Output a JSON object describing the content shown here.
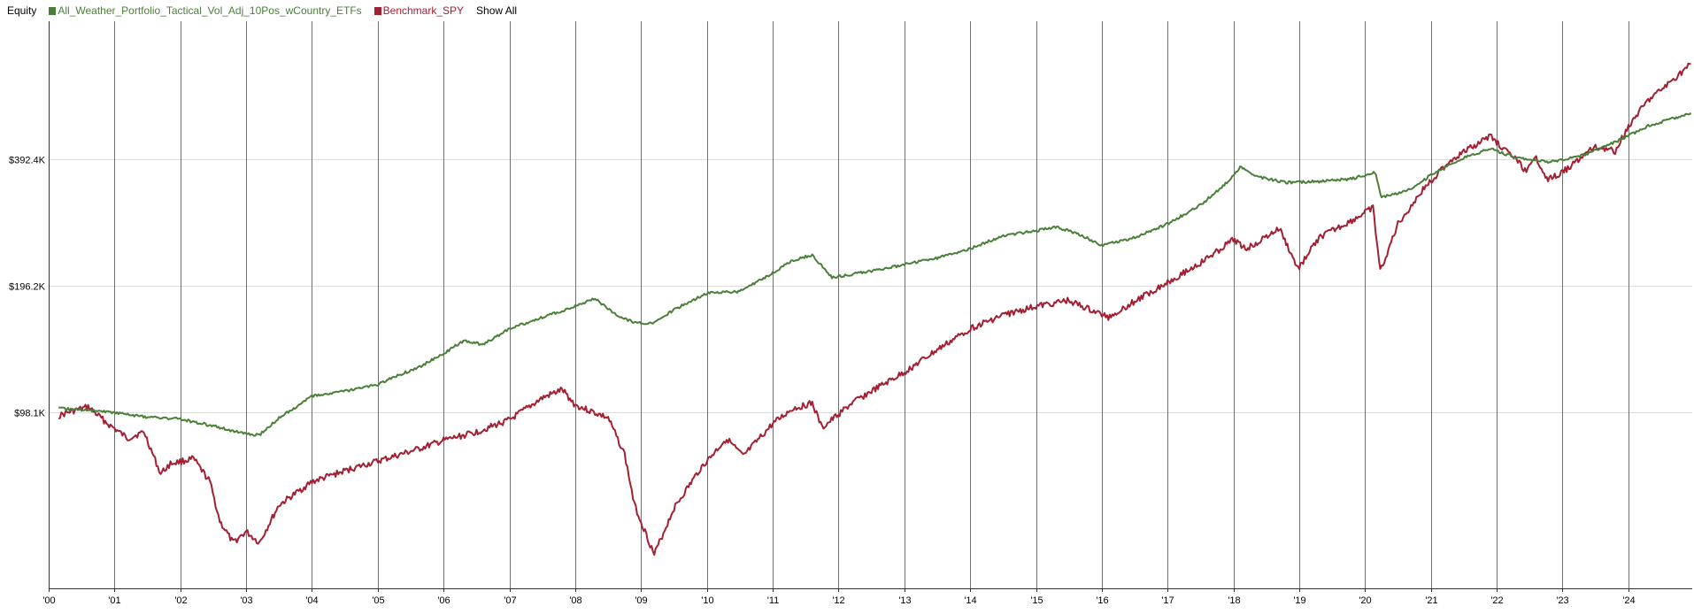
{
  "legend": {
    "title": "Equity",
    "show_all": "Show All"
  },
  "colors": {
    "strategy": "#4a7f39",
    "benchmark": "#a31f31",
    "year_grid": "#6f6f6f",
    "value_grid": "#dcdcdc",
    "axis": "#333333"
  },
  "chart_data": {
    "type": "line",
    "title": "Equity",
    "xlabel": "",
    "ylabel": "",
    "y_scale": "log",
    "y_ticks": [
      {
        "value": 98100,
        "label": "$98.1K"
      },
      {
        "value": 196200,
        "label": "$196.2K"
      },
      {
        "value": 392400,
        "label": "$392.4K"
      }
    ],
    "x_ticks": [
      "'00",
      "'01",
      "'02",
      "'03",
      "'04",
      "'05",
      "'06",
      "'07",
      "'08",
      "'09",
      "'10",
      "'11",
      "'12",
      "'13",
      "'14",
      "'15",
      "'16",
      "'17",
      "'18",
      "'19",
      "'20",
      "'21",
      "'22",
      "'23",
      "'24"
    ],
    "xlim": [
      2000.0,
      2024.97
    ],
    "ylim": [
      37400,
      834000
    ],
    "grid": {
      "x": true,
      "y": true
    },
    "legend_position": "top-left",
    "series": [
      {
        "name": "All_Weather_Portfolio_Tactical_Vol_Adj_10Pos_wCountry_ETFs",
        "points": [
          [
            2000.15,
            100000
          ],
          [
            2000.5,
            99500
          ],
          [
            2001.0,
            98000
          ],
          [
            2001.5,
            95500
          ],
          [
            2002.0,
            94500
          ],
          [
            2002.5,
            91000
          ],
          [
            2003.0,
            87000
          ],
          [
            2003.2,
            86500
          ],
          [
            2003.5,
            95000
          ],
          [
            2004.0,
            107000
          ],
          [
            2004.5,
            110000
          ],
          [
            2005.0,
            114000
          ],
          [
            2005.3,
            120000
          ],
          [
            2005.6,
            125000
          ],
          [
            2006.0,
            135000
          ],
          [
            2006.3,
            145000
          ],
          [
            2006.6,
            142000
          ],
          [
            2007.0,
            155000
          ],
          [
            2007.5,
            165000
          ],
          [
            2008.0,
            175000
          ],
          [
            2008.3,
            183000
          ],
          [
            2008.6,
            168000
          ],
          [
            2008.9,
            160000
          ],
          [
            2009.2,
            160000
          ],
          [
            2009.5,
            172000
          ],
          [
            2010.0,
            188000
          ],
          [
            2010.5,
            190000
          ],
          [
            2011.0,
            210000
          ],
          [
            2011.3,
            225000
          ],
          [
            2011.6,
            232000
          ],
          [
            2011.9,
            205000
          ],
          [
            2012.3,
            210000
          ],
          [
            2012.7,
            215000
          ],
          [
            2013.0,
            220000
          ],
          [
            2013.5,
            228000
          ],
          [
            2014.0,
            240000
          ],
          [
            2014.5,
            258000
          ],
          [
            2015.0,
            265000
          ],
          [
            2015.3,
            270000
          ],
          [
            2015.6,
            262000
          ],
          [
            2016.0,
            245000
          ],
          [
            2016.5,
            255000
          ],
          [
            2017.0,
            275000
          ],
          [
            2017.5,
            305000
          ],
          [
            2017.9,
            345000
          ],
          [
            2018.1,
            375000
          ],
          [
            2018.4,
            355000
          ],
          [
            2018.8,
            345000
          ],
          [
            2019.3,
            347000
          ],
          [
            2019.8,
            352000
          ],
          [
            2020.15,
            365000
          ],
          [
            2020.25,
            318000
          ],
          [
            2020.5,
            325000
          ],
          [
            2020.8,
            340000
          ],
          [
            2021.0,
            360000
          ],
          [
            2021.5,
            395000
          ],
          [
            2021.9,
            415000
          ],
          [
            2022.3,
            395000
          ],
          [
            2022.8,
            385000
          ],
          [
            2023.3,
            400000
          ],
          [
            2023.8,
            430000
          ],
          [
            2024.3,
            470000
          ],
          [
            2024.95,
            505000
          ]
        ]
      },
      {
        "name": "Benchmark_SPY",
        "points": [
          [
            2000.15,
            96000
          ],
          [
            2000.3,
            98000
          ],
          [
            2000.6,
            101000
          ],
          [
            2000.9,
            92000
          ],
          [
            2001.2,
            85000
          ],
          [
            2001.45,
            88000
          ],
          [
            2001.7,
            70000
          ],
          [
            2001.85,
            74000
          ],
          [
            2002.2,
            76000
          ],
          [
            2002.45,
            67000
          ],
          [
            2002.6,
            54000
          ],
          [
            2002.8,
            48000
          ],
          [
            2003.0,
            51000
          ],
          [
            2003.2,
            48000
          ],
          [
            2003.5,
            59000
          ],
          [
            2004.0,
            67000
          ],
          [
            2004.6,
            72000
          ],
          [
            2005.0,
            75000
          ],
          [
            2005.6,
            80000
          ],
          [
            2006.0,
            84000
          ],
          [
            2006.5,
            88000
          ],
          [
            2007.0,
            94000
          ],
          [
            2007.5,
            106000
          ],
          [
            2007.8,
            111000
          ],
          [
            2008.0,
            102000
          ],
          [
            2008.5,
            95000
          ],
          [
            2008.75,
            78000
          ],
          [
            2008.9,
            59000
          ],
          [
            2009.2,
            45000
          ],
          [
            2009.5,
            58000
          ],
          [
            2009.9,
            72000
          ],
          [
            2010.3,
            85000
          ],
          [
            2010.55,
            77000
          ],
          [
            2011.0,
            92000
          ],
          [
            2011.3,
            100000
          ],
          [
            2011.6,
            103000
          ],
          [
            2011.75,
            90000
          ],
          [
            2012.2,
            103000
          ],
          [
            2012.5,
            110000
          ],
          [
            2013.0,
            122000
          ],
          [
            2013.5,
            138000
          ],
          [
            2014.0,
            155000
          ],
          [
            2014.5,
            167000
          ],
          [
            2015.0,
            175000
          ],
          [
            2015.5,
            181000
          ],
          [
            2015.7,
            175000
          ],
          [
            2016.1,
            165000
          ],
          [
            2016.5,
            180000
          ],
          [
            2017.0,
            200000
          ],
          [
            2017.5,
            222000
          ],
          [
            2018.0,
            252000
          ],
          [
            2018.2,
            240000
          ],
          [
            2018.7,
            268000
          ],
          [
            2018.98,
            215000
          ],
          [
            2019.3,
            255000
          ],
          [
            2019.8,
            280000
          ],
          [
            2020.12,
            300000
          ],
          [
            2020.23,
            212000
          ],
          [
            2020.5,
            275000
          ],
          [
            2020.9,
            335000
          ],
          [
            2021.3,
            390000
          ],
          [
            2021.9,
            445000
          ],
          [
            2022.3,
            390000
          ],
          [
            2022.45,
            365000
          ],
          [
            2022.6,
            395000
          ],
          [
            2022.78,
            350000
          ],
          [
            2023.0,
            365000
          ],
          [
            2023.5,
            420000
          ],
          [
            2023.8,
            410000
          ],
          [
            2024.0,
            470000
          ],
          [
            2024.3,
            540000
          ],
          [
            2024.6,
            590000
          ],
          [
            2024.95,
            660000
          ]
        ]
      }
    ]
  }
}
